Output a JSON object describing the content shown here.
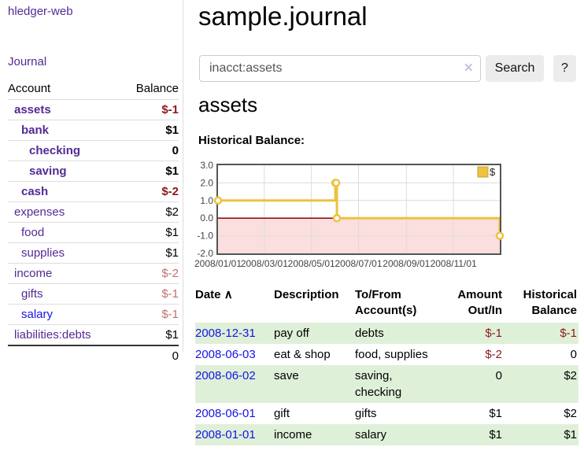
{
  "app": {
    "title": "hledger-web",
    "nav_journal": "Journal"
  },
  "colors": {
    "accent_purple": "#542a94",
    "link_blue": "#1414e8",
    "negative": "#8b1a1a",
    "negative_dim": "#c0716f",
    "row_green": "#dff0d8",
    "series_gold": "#edc240",
    "negative_region_pink": "#fbdede",
    "zero_line": "#8b0000",
    "plot_border": "#545454",
    "gridline": "#dcdcdc"
  },
  "sidebar": {
    "header": {
      "account": "Account",
      "balance": "Balance"
    },
    "accounts": [
      {
        "name": "assets",
        "balance": "$-1"
      },
      {
        "name": "bank",
        "balance": "$1"
      },
      {
        "name": "checking",
        "balance": "0"
      },
      {
        "name": "saving",
        "balance": "$1"
      },
      {
        "name": "cash",
        "balance": "$-2"
      },
      {
        "name": "expenses",
        "balance": "$2"
      },
      {
        "name": "food",
        "balance": "$1"
      },
      {
        "name": "supplies",
        "balance": "$1"
      },
      {
        "name": "income",
        "balance": "$-2"
      },
      {
        "name": "gifts",
        "balance": "$-1"
      },
      {
        "name": "salary",
        "balance": "$-1"
      },
      {
        "name": "liabilities:debts",
        "balance": "$1"
      }
    ],
    "total": "0"
  },
  "main": {
    "title": "sample.journal",
    "search": {
      "value": "inacct:assets",
      "clear_icon": "✕",
      "button_label": "Search",
      "help_label": "?"
    },
    "account_heading": "assets",
    "chart_label": "Historical Balance:"
  },
  "chart_data": {
    "type": "line",
    "step": true,
    "title": "Historical Balance",
    "xlim": [
      "2008-01-01",
      "2008-12-31"
    ],
    "ylim": [
      -2,
      3
    ],
    "y_ticks": [
      -2,
      -1,
      0,
      1,
      2,
      3
    ],
    "y_tick_labels": [
      "-2.0",
      "-1.0",
      "0.0",
      "1.0",
      "2.0",
      "3.0"
    ],
    "x_ticks": [
      "2008-01-01",
      "2008-03-01",
      "2008-05-01",
      "2008-07-01",
      "2008-09-01",
      "2008-11-01"
    ],
    "x_tick_labels": [
      "2008/01/01",
      "2008/03/01",
      "2008/05/01",
      "2008/07/01",
      "2008/09/01",
      "2008/11/01"
    ],
    "legend": {
      "label": "$",
      "color": "#edc240",
      "position": "top-right"
    },
    "grid": true,
    "series": [
      {
        "name": "$",
        "color": "#edc240",
        "points": [
          [
            "2008-01-01",
            1
          ],
          [
            "2008-06-01",
            2
          ],
          [
            "2008-06-02",
            2
          ],
          [
            "2008-06-03",
            0
          ],
          [
            "2008-12-31",
            -1
          ]
        ]
      }
    ]
  },
  "register": {
    "headers": {
      "date": "Date",
      "sort_icon": "∧",
      "description": "Description",
      "tofrom": "To/From Account(s)",
      "amount": "Amount Out/In",
      "historical": "Historical Balance"
    },
    "rows": [
      {
        "date": "2008-12-31",
        "description": "pay off",
        "accounts": "debts",
        "amount": "$-1",
        "balance": "$-1"
      },
      {
        "date": "2008-06-03",
        "description": "eat & shop",
        "accounts": "food, supplies",
        "amount": "$-2",
        "balance": "0"
      },
      {
        "date": "2008-06-02",
        "description": "save",
        "accounts": "saving, checking",
        "amount": "0",
        "balance": "$2"
      },
      {
        "date": "2008-06-01",
        "description": "gift",
        "accounts": "gifts",
        "amount": "$1",
        "balance": "$2"
      },
      {
        "date": "2008-01-01",
        "description": "income",
        "accounts": "salary",
        "amount": "$1",
        "balance": "$1"
      }
    ]
  }
}
